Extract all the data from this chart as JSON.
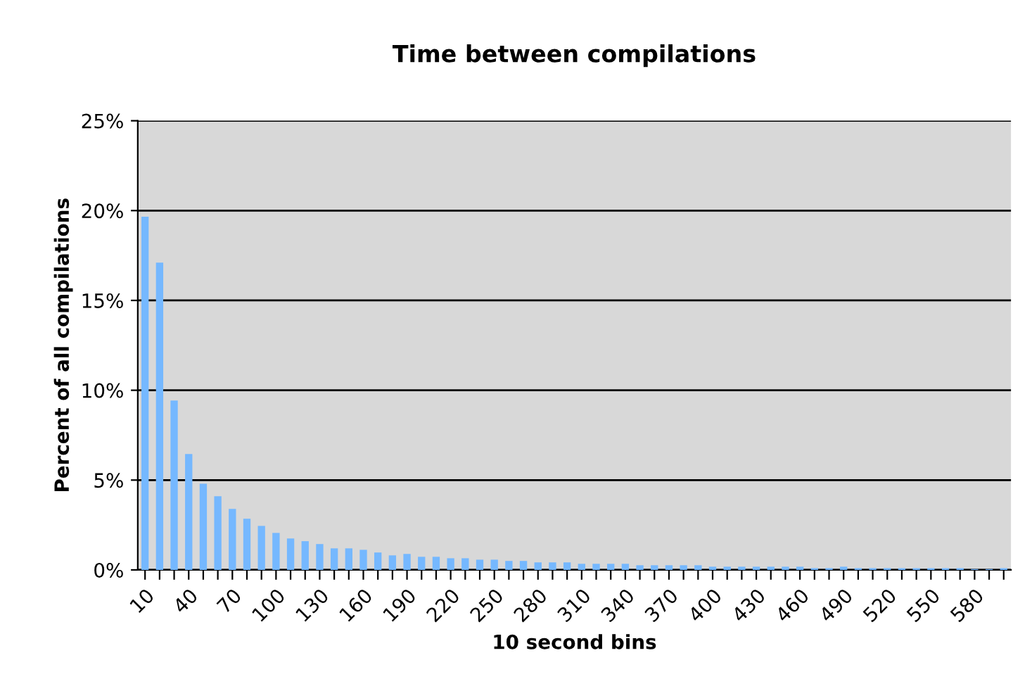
{
  "chart_data": {
    "type": "bar",
    "title": "Time between compilations",
    "xlabel": "10 second bins",
    "ylabel": "Percent of all compilations",
    "categories": [
      "10",
      null,
      null,
      "40",
      null,
      null,
      "70",
      null,
      null,
      "100",
      null,
      null,
      "130",
      null,
      null,
      "160",
      null,
      null,
      "190",
      null,
      null,
      "220",
      null,
      null,
      "250",
      null,
      null,
      "280",
      null,
      null,
      "310",
      null,
      null,
      "340",
      null,
      null,
      "370",
      null,
      null,
      "400",
      null,
      null,
      "430",
      null,
      null,
      "460",
      null,
      null,
      "490",
      null,
      null,
      "520",
      null,
      null,
      "550",
      null,
      null,
      "580",
      null,
      null
    ],
    "values": [
      19.66,
      17.1,
      9.43,
      6.45,
      4.8,
      4.1,
      3.4,
      2.85,
      2.45,
      2.06,
      1.75,
      1.6,
      1.44,
      1.2,
      1.2,
      1.12,
      0.97,
      0.81,
      0.89,
      0.73,
      0.73,
      0.65,
      0.65,
      0.57,
      0.57,
      0.5,
      0.5,
      0.42,
      0.42,
      0.42,
      0.34,
      0.34,
      0.34,
      0.34,
      0.26,
      0.26,
      0.26,
      0.26,
      0.26,
      0.18,
      0.18,
      0.18,
      0.18,
      0.18,
      0.18,
      0.18,
      0.1,
      0.1,
      0.18,
      0.1,
      0.1,
      0.1,
      0.1,
      0.1,
      0.1,
      0.1,
      0.1,
      0.05,
      0.05,
      0.1
    ],
    "color": "#75b8ff",
    "ylim": [
      0,
      25
    ],
    "yticks": [
      {
        "value": 0,
        "label": "0%"
      },
      {
        "value": 5,
        "label": "5%"
      },
      {
        "value": 10,
        "label": "10%"
      },
      {
        "value": 15,
        "label": "15%"
      },
      {
        "value": 20,
        "label": "20%"
      },
      {
        "value": 25,
        "label": "25%"
      }
    ],
    "grid": "y"
  }
}
